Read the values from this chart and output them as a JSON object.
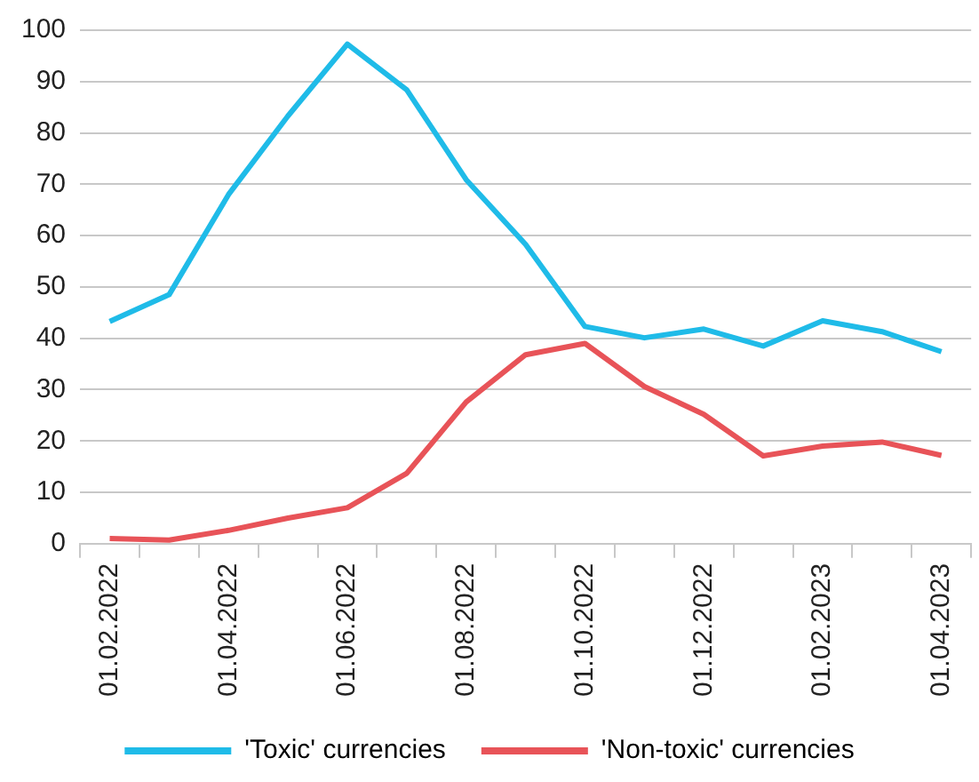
{
  "chart_data": {
    "type": "line",
    "categories": [
      "01.02.2022",
      null,
      "01.04.2022",
      null,
      "01.06.2022",
      null,
      "01.08.2022",
      null,
      "01.10.2022",
      null,
      "01.12.2022",
      null,
      "01.02.2023",
      null,
      "01.04.2023"
    ],
    "series": [
      {
        "name": "'Toxic' currencies",
        "color": "#1fbbe8",
        "values": [
          43.3,
          48.5,
          68,
          83.3,
          97.3,
          88.4,
          70.9,
          58.3,
          42.3,
          40.1,
          41.8,
          38.5,
          43.4,
          41.3,
          37.4
        ]
      },
      {
        "name": "'Non-toxic' currencies",
        "color": "#e85358",
        "values": [
          1,
          0.7,
          2.6,
          5,
          7,
          13.7,
          27.6,
          36.8,
          39,
          30.6,
          25.2,
          17.1,
          19,
          19.8,
          17.2
        ]
      }
    ],
    "ylim": [
      0,
      100
    ],
    "yticks": [
      0,
      10,
      20,
      30,
      40,
      50,
      60,
      70,
      80,
      90,
      100
    ],
    "grid": "y",
    "legend": "bottom",
    "marker": "none",
    "line_style": "solid"
  }
}
